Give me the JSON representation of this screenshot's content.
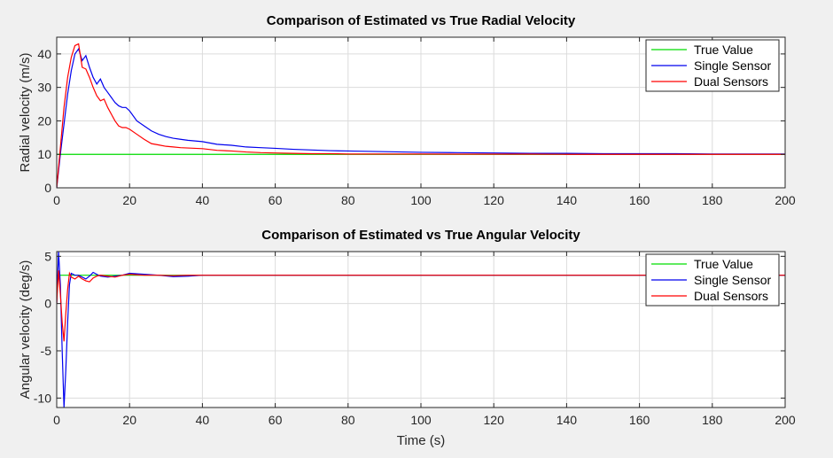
{
  "figure_background": "#f0f0f0",
  "colors": {
    "true": "#00dd00",
    "single": "#0000ee",
    "dual": "#ff0000",
    "axis": "#262626",
    "grid": "#dcdcdc"
  },
  "chart_data": [
    {
      "type": "line",
      "title": "Comparison of Estimated vs True Radial Velocity",
      "xlabel": "",
      "ylabel": "Radial velocity (m/s)",
      "xlim": [
        0,
        200
      ],
      "ylim": [
        0,
        45
      ],
      "xticks": [
        0,
        20,
        40,
        60,
        80,
        100,
        120,
        140,
        160,
        180,
        200
      ],
      "yticks": [
        0,
        10,
        20,
        30,
        40
      ],
      "grid": true,
      "legend_position": "top-right",
      "legend": [
        "True Value",
        "Single Sensor",
        "Dual Sensors"
      ],
      "series": [
        {
          "name": "True Value",
          "color": "#00dd00",
          "x": [
            0,
            200
          ],
          "y": [
            10,
            10
          ]
        },
        {
          "name": "Single Sensor",
          "color": "#0000ee",
          "x": [
            0,
            1,
            2,
            3,
            4,
            5,
            6,
            7,
            8,
            9,
            10,
            11,
            12,
            13,
            14,
            15,
            16,
            17,
            18,
            19,
            20,
            22,
            24,
            26,
            28,
            30,
            32,
            34,
            36,
            38,
            40,
            44,
            48,
            52,
            56,
            60,
            65,
            70,
            75,
            80,
            90,
            100,
            110,
            120,
            130,
            140,
            150,
            160,
            170,
            180,
            190,
            200
          ],
          "y": [
            0,
            10,
            19,
            28,
            35,
            40,
            41.5,
            38,
            39.5,
            36,
            33,
            31,
            32.5,
            30,
            28.5,
            27,
            25.5,
            24.5,
            24,
            24,
            23,
            20,
            18.5,
            17,
            16,
            15.3,
            14.8,
            14.5,
            14.2,
            14,
            13.8,
            13,
            12.7,
            12.2,
            12,
            11.8,
            11.5,
            11.3,
            11.1,
            11,
            10.8,
            10.6,
            10.5,
            10.4,
            10.3,
            10.3,
            10.2,
            10.2,
            10.2,
            10.1,
            10.1,
            10.1
          ]
        },
        {
          "name": "Dual Sensors",
          "color": "#ff0000",
          "x": [
            0,
            1,
            2,
            3,
            4,
            5,
            6,
            7,
            8,
            9,
            10,
            11,
            12,
            13,
            14,
            15,
            16,
            17,
            18,
            19,
            20,
            22,
            24,
            26,
            28,
            30,
            32,
            34,
            36,
            38,
            40,
            44,
            48,
            52,
            56,
            60,
            65,
            70,
            75,
            80,
            90,
            100,
            110,
            120,
            130,
            140,
            150,
            160,
            170,
            180,
            190,
            200
          ],
          "y": [
            0,
            12,
            24,
            33,
            39,
            42.5,
            43,
            36,
            35.5,
            33,
            30,
            27.5,
            26,
            26.5,
            24,
            22,
            20,
            18.5,
            18,
            18,
            17.5,
            16,
            14.5,
            13.2,
            12.8,
            12.4,
            12.2,
            12,
            11.9,
            11.8,
            11.7,
            11.2,
            11,
            10.7,
            10.5,
            10.4,
            10.3,
            10.2,
            10.2,
            10.1,
            10.1,
            10.1,
            10.05,
            10.05,
            10.05,
            10,
            10,
            10,
            10,
            10,
            10,
            10
          ]
        }
      ]
    },
    {
      "type": "line",
      "title": "Comparison of Estimated vs True Angular Velocity",
      "xlabel": "Time (s)",
      "ylabel": "Angular velocity (deg/s)",
      "xlim": [
        0,
        200
      ],
      "ylim": [
        -11,
        5.5
      ],
      "xticks": [
        0,
        20,
        40,
        60,
        80,
        100,
        120,
        140,
        160,
        180,
        200
      ],
      "yticks": [
        -10,
        -5,
        0,
        5
      ],
      "grid": true,
      "legend_position": "top-right",
      "legend": [
        "True Value",
        "Single Sensor",
        "Dual Sensors"
      ],
      "series": [
        {
          "name": "True Value",
          "color": "#00dd00",
          "x": [
            0,
            200
          ],
          "y": [
            3,
            3
          ]
        },
        {
          "name": "Single Sensor",
          "color": "#0000ee",
          "x": [
            0,
            0.5,
            1,
            1.5,
            2,
            2.5,
            3,
            3.5,
            4,
            5,
            6,
            7,
            8,
            9,
            10,
            11,
            12,
            14,
            16,
            18,
            20,
            24,
            28,
            32,
            36,
            40,
            50,
            60,
            80,
            100,
            120,
            140,
            160,
            180,
            200
          ],
          "y": [
            0,
            5.5,
            2,
            -5,
            -11,
            -7,
            -2,
            2,
            3.2,
            3,
            3,
            2.8,
            2.6,
            2.9,
            3.3,
            3.1,
            2.9,
            2.8,
            2.9,
            3,
            3.2,
            3.1,
            3,
            2.85,
            2.9,
            3,
            3,
            3,
            3,
            3,
            3,
            3,
            3,
            3,
            3
          ]
        },
        {
          "name": "Dual Sensors",
          "color": "#ff0000",
          "x": [
            0,
            0.5,
            1,
            1.5,
            2,
            2.5,
            3,
            3.5,
            4,
            5,
            6,
            7,
            8,
            9,
            10,
            11,
            12,
            14,
            16,
            18,
            20,
            24,
            28,
            32,
            36,
            40,
            50,
            60,
            80,
            100,
            120,
            140,
            160,
            180,
            200
          ],
          "y": [
            0,
            3.5,
            1,
            -2,
            -4,
            -1,
            1.5,
            3.2,
            2.8,
            2.6,
            2.9,
            2.6,
            2.4,
            2.3,
            2.7,
            2.9,
            3,
            2.9,
            2.8,
            3,
            3.1,
            3,
            3,
            2.95,
            3,
            3,
            3,
            3,
            3,
            3,
            3,
            3,
            3,
            3,
            3
          ]
        }
      ]
    }
  ]
}
